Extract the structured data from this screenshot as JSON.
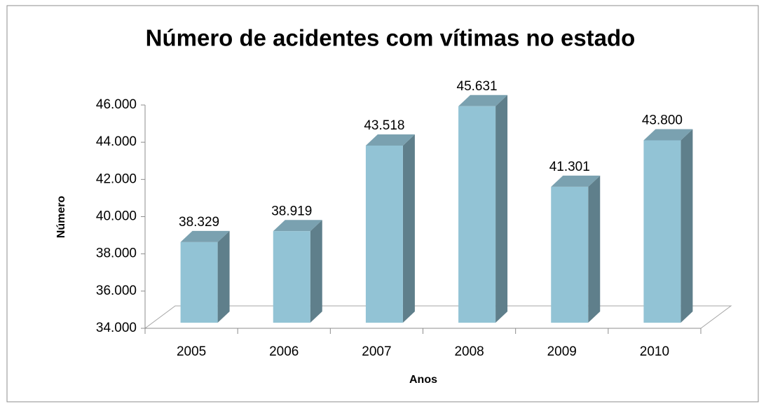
{
  "chart_data": {
    "type": "bar3d",
    "title": "Número de acidentes com vítimas no estado",
    "xlabel": "Anos",
    "ylabel": "Número",
    "categories": [
      "2005",
      "2006",
      "2007",
      "2008",
      "2009",
      "2010"
    ],
    "values": [
      38329,
      38919,
      43518,
      45631,
      41301,
      43800
    ],
    "value_labels": [
      "38.329",
      "38.919",
      "43.518",
      "45.631",
      "41.301",
      "43.800"
    ],
    "color": "#92c3d5",
    "ylim": [
      34000,
      46000
    ],
    "yticks": [
      {
        "value": 34000,
        "label": "34.000"
      },
      {
        "value": 36000,
        "label": "36.000"
      },
      {
        "value": 38000,
        "label": "38.000"
      },
      {
        "value": 40000,
        "label": "40.000"
      },
      {
        "value": 42000,
        "label": "42.000"
      },
      {
        "value": 44000,
        "label": "44.000"
      },
      {
        "value": 46000,
        "label": "46.000"
      }
    ]
  }
}
